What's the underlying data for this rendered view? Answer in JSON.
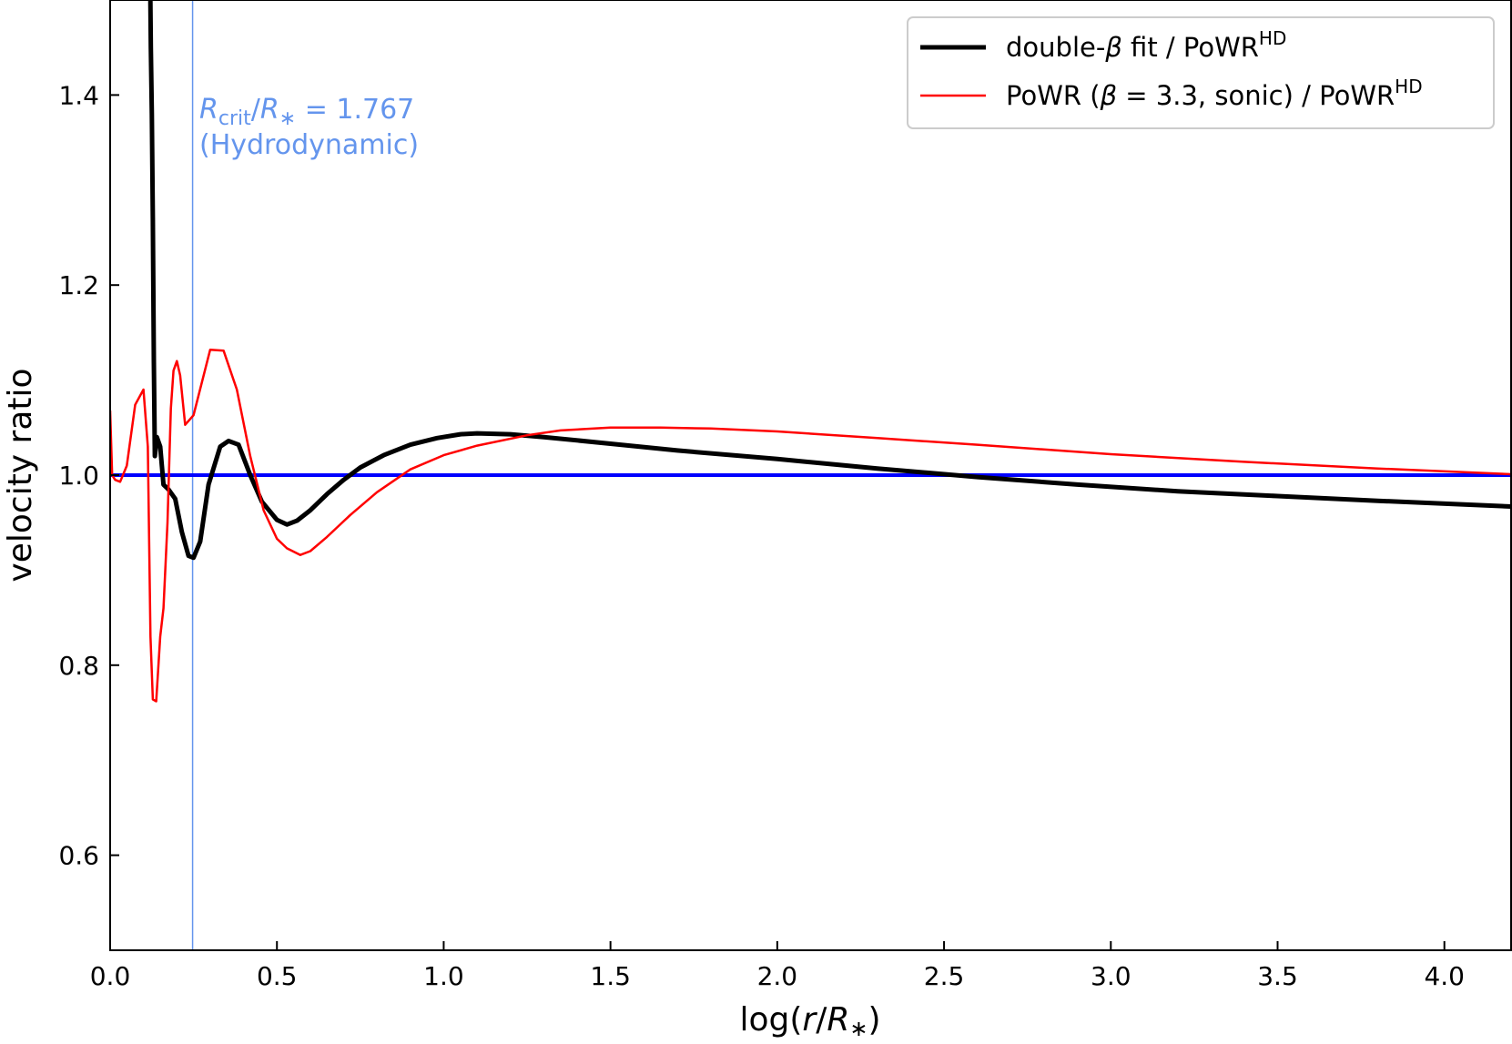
{
  "chart_data": {
    "type": "line",
    "title": "",
    "xlabel": "log(r/R∗)",
    "xlabel_parts": {
      "pre": "log(",
      "r": "r",
      "slash": "/",
      "R": "R",
      "sub": "∗",
      "post": ")"
    },
    "ylabel": "velocity ratio",
    "xlim": [
      0.0,
      4.2
    ],
    "ylim": [
      0.5,
      1.5
    ],
    "xticks": [
      0.0,
      0.5,
      1.0,
      1.5,
      2.0,
      2.5,
      3.0,
      3.5,
      4.0
    ],
    "xtick_labels": [
      "0.0",
      "0.5",
      "1.0",
      "1.5",
      "2.0",
      "2.5",
      "3.0",
      "3.5",
      "4.0"
    ],
    "yticks": [
      0.6,
      0.8,
      1.0,
      1.2,
      1.4
    ],
    "ytick_labels": [
      "0.6",
      "0.8",
      "1.0",
      "1.2",
      "1.4"
    ],
    "grid": false,
    "legend_position": "top-right",
    "reference_line": {
      "y": 1.0,
      "color": "#0000ff"
    },
    "vline": {
      "x": 0.2472,
      "color": "#6495ed"
    },
    "annotation": {
      "line1_R": "R",
      "line1_sub": "crit",
      "line1_slash": "/",
      "line1_R2": "R",
      "line1_sub2": "∗",
      "line1_value": " = 1.767",
      "line2": "(Hydrodynamic)",
      "color": "#6495ed"
    },
    "series": [
      {
        "name": "double-β fit / PoWR^HD",
        "legend_pre": "double-",
        "legend_beta": "β",
        "legend_post": " fit / PoWR",
        "legend_sup": "HD",
        "color": "#000000",
        "x": [
          0.12,
          0.122,
          0.125,
          0.128,
          0.131,
          0.134,
          0.14,
          0.15,
          0.16,
          0.175,
          0.195,
          0.215,
          0.235,
          0.25,
          0.27,
          0.295,
          0.33,
          0.355,
          0.385,
          0.42,
          0.455,
          0.5,
          0.53,
          0.56,
          0.6,
          0.65,
          0.7,
          0.75,
          0.82,
          0.9,
          0.98,
          1.05,
          1.1,
          1.2,
          1.3,
          1.5,
          1.7,
          2.0,
          2.3,
          2.6,
          2.9,
          3.2,
          3.5,
          3.8,
          4.2
        ],
        "y": [
          1.52,
          1.45,
          1.38,
          1.27,
          1.12,
          1.02,
          1.04,
          1.03,
          0.99,
          0.985,
          0.975,
          0.94,
          0.915,
          0.913,
          0.93,
          0.99,
          1.03,
          1.036,
          1.032,
          1.0,
          0.972,
          0.953,
          0.948,
          0.952,
          0.963,
          0.98,
          0.995,
          1.008,
          1.021,
          1.032,
          1.039,
          1.043,
          1.044,
          1.043,
          1.04,
          1.033,
          1.026,
          1.017,
          1.007,
          0.998,
          0.99,
          0.983,
          0.978,
          0.973,
          0.967
        ]
      },
      {
        "name": "PoWR (β = 3.3, sonic) / PoWR^HD",
        "legend_pre": "PoWR (",
        "legend_beta": "β",
        "legend_post": " = 3.3, sonic) / PoWR",
        "legend_sup": "HD",
        "color": "#ff0000",
        "x": [
          0.0,
          0.006,
          0.015,
          0.03,
          0.05,
          0.075,
          0.1,
          0.113,
          0.121,
          0.128,
          0.138,
          0.15,
          0.16,
          0.172,
          0.182,
          0.19,
          0.2,
          0.21,
          0.225,
          0.25,
          0.3,
          0.34,
          0.38,
          0.42,
          0.46,
          0.5,
          0.53,
          0.57,
          0.6,
          0.65,
          0.72,
          0.8,
          0.9,
          1.0,
          1.1,
          1.25,
          1.35,
          1.5,
          1.65,
          1.8,
          2.0,
          2.3,
          2.6,
          3.0,
          3.4,
          3.8,
          4.2
        ],
        "y": [
          1.068,
          1.0,
          0.995,
          0.993,
          1.01,
          1.074,
          1.09,
          1.03,
          0.83,
          0.764,
          0.762,
          0.83,
          0.86,
          0.95,
          1.07,
          1.11,
          1.12,
          1.105,
          1.053,
          1.063,
          1.132,
          1.131,
          1.09,
          1.02,
          0.963,
          0.933,
          0.923,
          0.916,
          0.92,
          0.935,
          0.958,
          0.982,
          1.006,
          1.021,
          1.031,
          1.042,
          1.047,
          1.05,
          1.05,
          1.049,
          1.046,
          1.039,
          1.032,
          1.022,
          1.014,
          1.007,
          1.001
        ]
      }
    ]
  }
}
